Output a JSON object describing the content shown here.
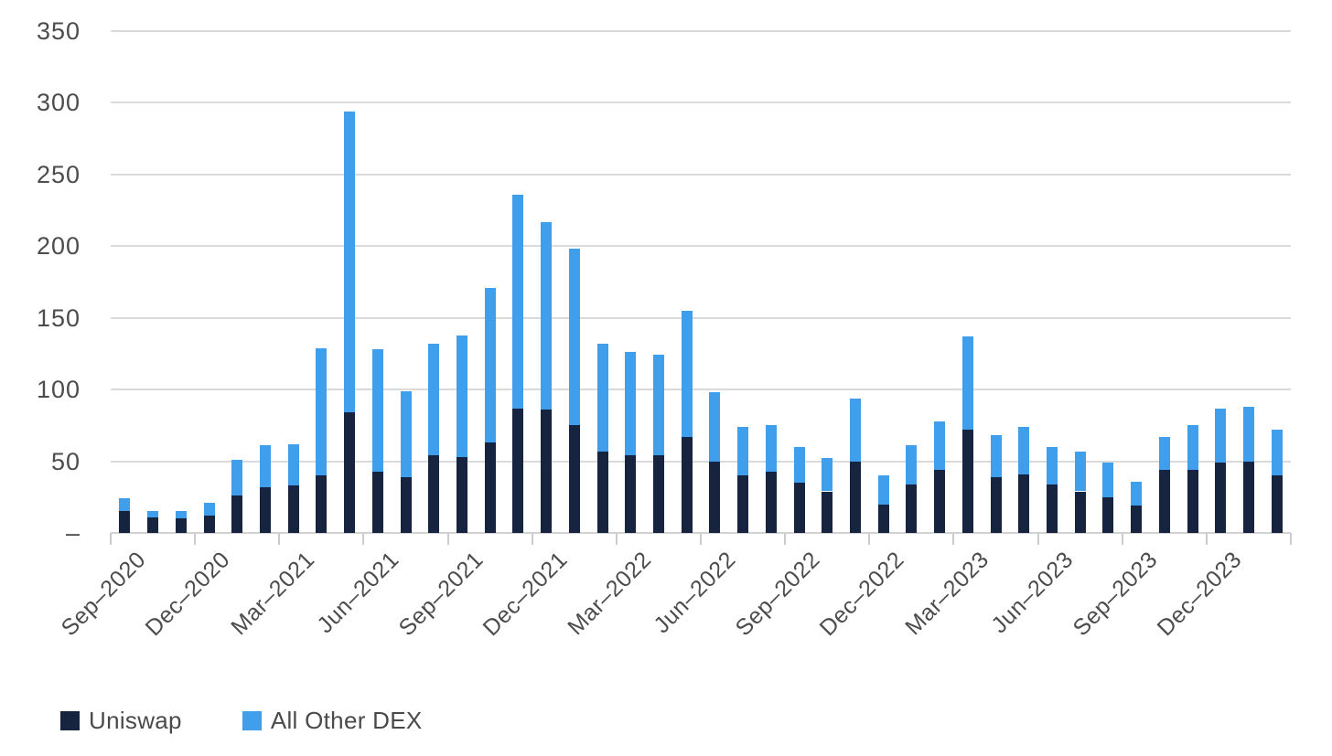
{
  "chart_data": {
    "type": "bar",
    "stacked": true,
    "title": "",
    "xlabel": "",
    "ylabel": "",
    "x": [
      "Sep–2020",
      "Oct–2020",
      "Nov–2020",
      "Dec–2020",
      "Jan–2021",
      "Feb–2021",
      "Mar–2021",
      "Apr–2021",
      "May–2021",
      "Jun–2021",
      "Jul–2021",
      "Aug–2021",
      "Sep–2021",
      "Oct–2021",
      "Nov–2021",
      "Dec–2021",
      "Jan–2022",
      "Feb–2022",
      "Mar–2022",
      "Apr–2022",
      "May–2022",
      "Jun–2022",
      "Jul–2022",
      "Aug–2022",
      "Sep–2022",
      "Oct–2022",
      "Nov–2022",
      "Dec–2022",
      "Jan–2023",
      "Feb–2023",
      "Mar–2023",
      "Apr–2023",
      "May–2023",
      "Jun–2023",
      "Jul–2023",
      "Aug–2023",
      "Sep–2023",
      "Oct–2023",
      "Nov–2023",
      "Dec–2023",
      "Jan–2024",
      "Feb–2024"
    ],
    "series": [
      {
        "name": "Uniswap",
        "color": "#16243f",
        "values": [
          15,
          11,
          10,
          12,
          26,
          32,
          33,
          40,
          84,
          43,
          39,
          54,
          53,
          63,
          87,
          86,
          75,
          57,
          54,
          54,
          67,
          50,
          40,
          43,
          35,
          29,
          50,
          20,
          34,
          44,
          72,
          39,
          41,
          34,
          29,
          25,
          19,
          44,
          44,
          49,
          50,
          40
        ]
      },
      {
        "name": "All Other DEX",
        "color": "#3f9fed",
        "values": [
          9,
          4,
          5,
          9,
          25,
          29,
          29,
          89,
          210,
          85,
          60,
          78,
          85,
          108,
          149,
          131,
          123,
          75,
          72,
          70,
          88,
          48,
          34,
          32,
          25,
          23,
          44,
          20,
          27,
          34,
          65,
          29,
          33,
          26,
          28,
          24,
          17,
          23,
          31,
          38,
          38,
          32
        ]
      }
    ],
    "x_tick_every": 3,
    "x_tick_labels": [
      "Sep–2020",
      "Dec–2020",
      "Mar–2021",
      "Jun–2021",
      "Sep–2021",
      "Dec–2021",
      "Mar–2022",
      "Jun–2022",
      "Sep–2022",
      "Dec–2022",
      "Mar–2023",
      "Jun–2023",
      "Sep–2023",
      "Dec–2023"
    ],
    "y_ticks": [
      350,
      300,
      250,
      200,
      150,
      100,
      50,
      0
    ],
    "y_zero_label": "–",
    "ylim": [
      0,
      350
    ],
    "grid": true,
    "legend_position": "bottom-left",
    "colors": {
      "grid": "#dadada",
      "axis_text": "#4c4c4c",
      "uniswap": "#16243f",
      "other_dex": "#3f9fed"
    }
  }
}
